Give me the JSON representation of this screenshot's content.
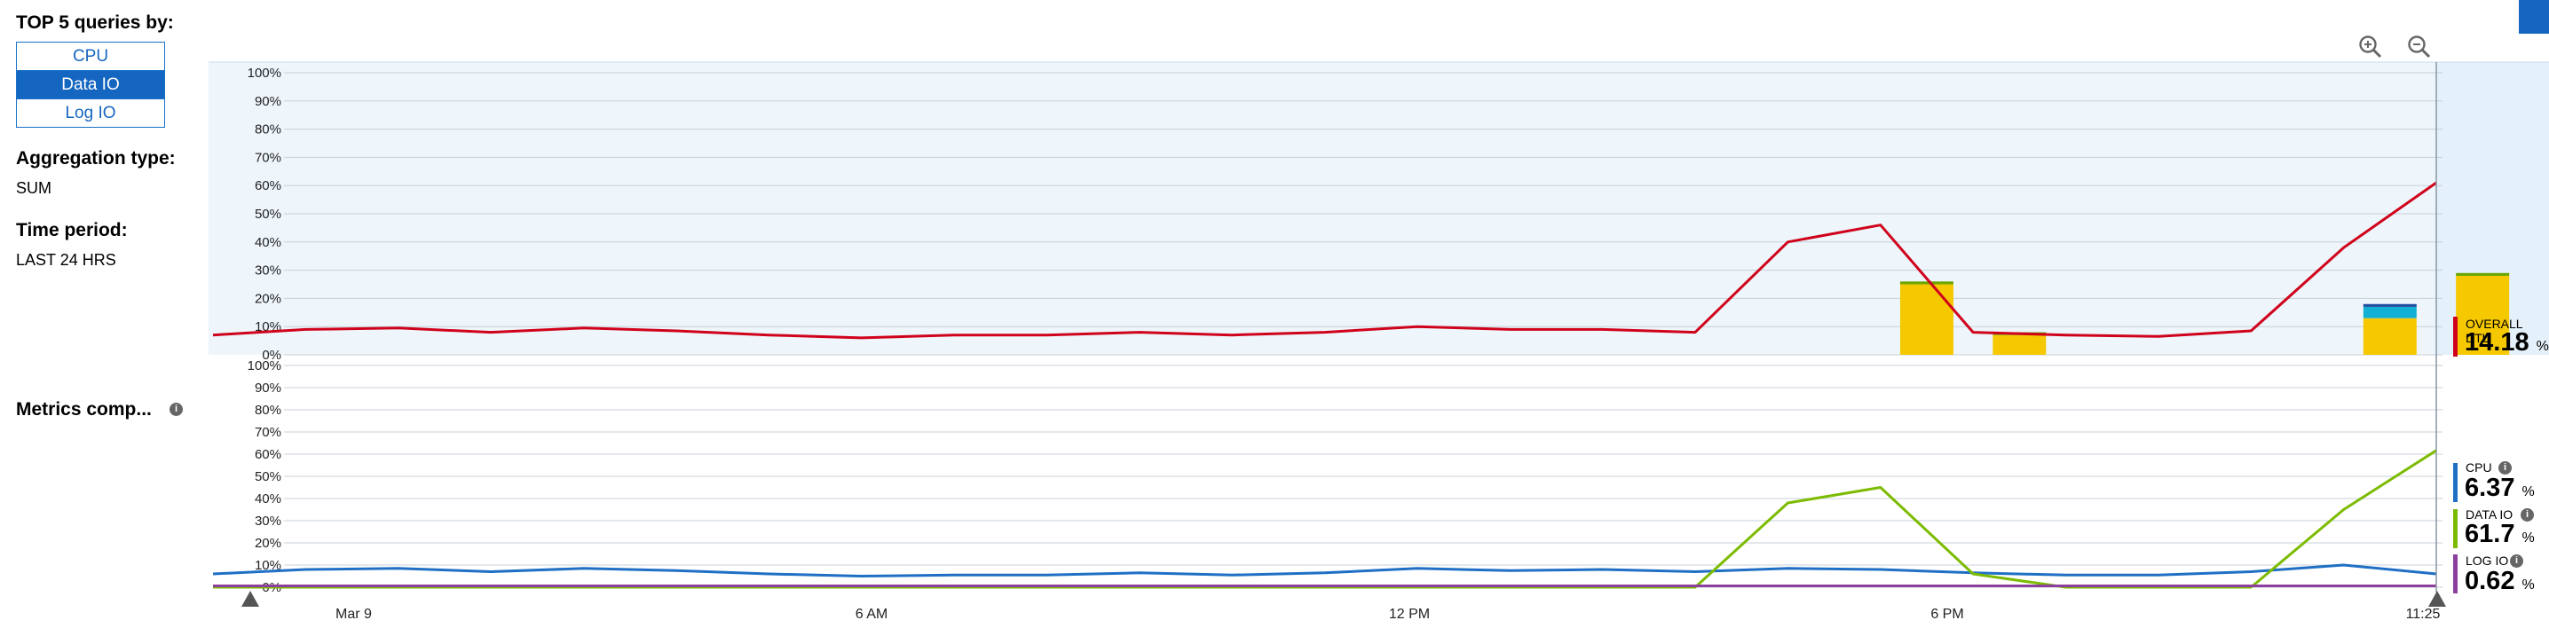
{
  "sidebar": {
    "top_queries_label": "TOP 5 queries by:",
    "query_options": [
      "CPU",
      "Data IO",
      "Log IO"
    ],
    "selected_option": "Data IO",
    "aggregation_label": "Aggregation type:",
    "aggregation_value": "SUM",
    "time_period_label": "Time period:",
    "time_period_value": "LAST 24 HRS",
    "metrics_label": "Metrics comp...",
    "info_glyph": "i"
  },
  "toolbar": {
    "zoom_in_icon": "zoom-in-icon",
    "zoom_out_icon": "zoom-out-icon",
    "accent": "#1566c0"
  },
  "legend": {
    "overall_dtu": {
      "label": "OVERALL DTU",
      "value": "14.18",
      "unit": "%",
      "color": "#d0021b"
    },
    "cpu": {
      "label": "CPU",
      "value": "6.37",
      "unit": "%",
      "color": "#1f6fc5"
    },
    "data_io": {
      "label": "DATA IO",
      "value": "61.7",
      "unit": "%",
      "color": "#7cbb00"
    },
    "log_io": {
      "label": "LOG IO",
      "value": "0.62",
      "unit": "%",
      "color": "#8c3f9e"
    }
  },
  "chart_data": [
    {
      "type": "line",
      "ylim": [
        0,
        100
      ],
      "yticks": [
        "100%",
        "90%",
        "80%",
        "70%",
        "60%",
        "50%",
        "40%",
        "30%",
        "20%",
        "10%",
        "0%"
      ],
      "x_ticks": [
        "Mar 9",
        "6 AM",
        "12 PM",
        "6 PM",
        "11:25"
      ],
      "series": [
        {
          "name": "OVERALL DTU",
          "color": "#d0021b",
          "values": [
            7,
            9,
            9.5,
            8,
            9.5,
            8.5,
            7,
            6,
            7,
            7,
            8,
            7,
            8,
            10,
            9,
            9,
            8,
            40,
            46,
            8,
            7,
            6.5,
            8.5,
            38,
            61
          ]
        }
      ],
      "bars": [
        {
          "x": 18.5,
          "total": 26,
          "segments": [
            {
              "value": 25,
              "color": "#f5c800"
            },
            {
              "value": 1,
              "color": "#6aa500"
            }
          ]
        },
        {
          "x": 19.5,
          "total": 8,
          "segments": [
            {
              "value": 7,
              "color": "#f5c800"
            },
            {
              "value": 1,
              "color": "#6aa500"
            }
          ]
        },
        {
          "x": 23.5,
          "total": 18,
          "segments": [
            {
              "value": 13,
              "color": "#f5c800"
            },
            {
              "value": 4,
              "color": "#11b0d4"
            },
            {
              "value": 1,
              "color": "#1f4fa0"
            }
          ]
        },
        {
          "x": 24.5,
          "total": 29,
          "segments": [
            {
              "value": 28,
              "color": "#f5c800"
            },
            {
              "value": 1,
              "color": "#6aa500"
            }
          ]
        }
      ]
    },
    {
      "type": "line",
      "ylim": [
        0,
        100
      ],
      "yticks": [
        "100%",
        "90%",
        "80%",
        "70%",
        "60%",
        "50%",
        "40%",
        "30%",
        "20%",
        "10%",
        "0%"
      ],
      "x_ticks": [
        "Mar 9",
        "6 AM",
        "12 PM",
        "6 PM",
        "11:25"
      ],
      "series": [
        {
          "name": "CPU",
          "color": "#1f6fc5",
          "values": [
            6,
            8,
            8.5,
            7,
            8.5,
            7.5,
            6,
            5,
            5.5,
            5.5,
            6.5,
            5.5,
            6.5,
            8.5,
            7.5,
            8,
            7,
            8.5,
            8,
            6.5,
            5.5,
            5.5,
            7,
            10,
            6
          ]
        },
        {
          "name": "DATA IO",
          "color": "#7cbb00",
          "values": [
            0,
            0,
            0,
            0,
            0,
            0,
            0,
            0,
            0,
            0,
            0,
            0,
            0,
            0,
            0,
            0,
            0,
            38,
            45,
            6,
            0,
            0,
            0,
            35,
            61.7
          ]
        },
        {
          "name": "LOG IO",
          "color": "#8c3f9e",
          "values": [
            0.6,
            0.6,
            0.6,
            0.6,
            0.6,
            0.6,
            0.6,
            0.6,
            0.6,
            0.6,
            0.6,
            0.6,
            0.6,
            0.6,
            0.6,
            0.6,
            0.6,
            0.6,
            0.6,
            0.6,
            0.6,
            0.6,
            0.6,
            0.6,
            0.62
          ]
        }
      ]
    }
  ]
}
